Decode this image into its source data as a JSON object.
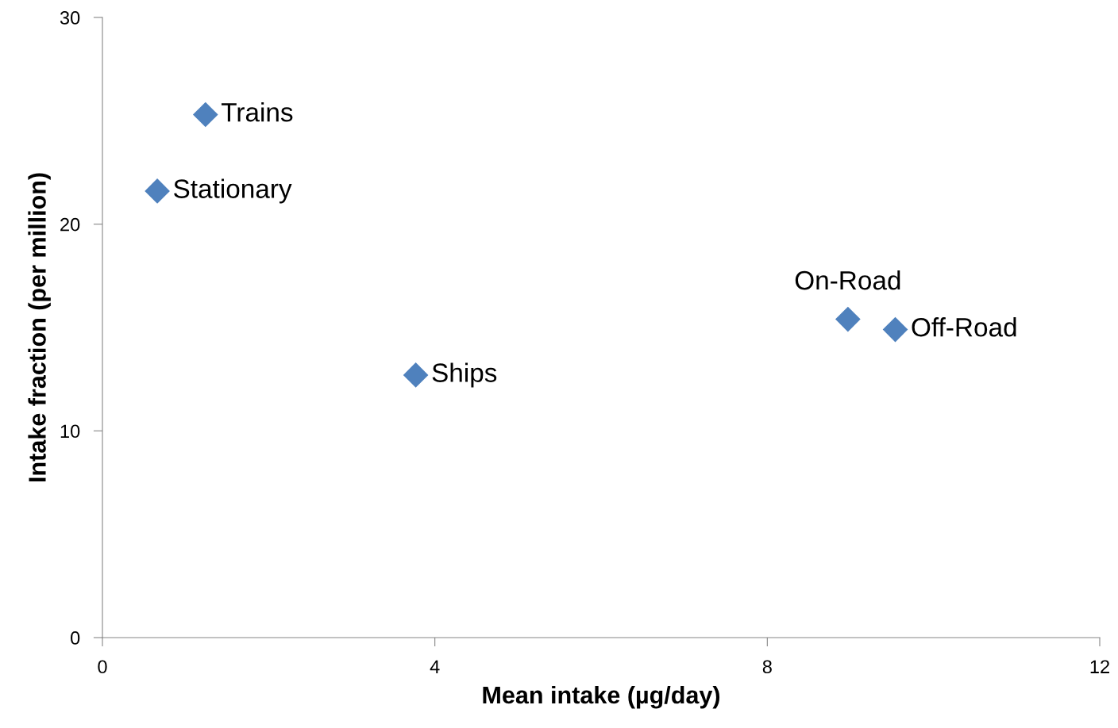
{
  "chart_data": {
    "type": "scatter",
    "xlabel": "Mean intake (µg/day)",
    "ylabel": "Intake fraction (per million)",
    "xlim": [
      0,
      12
    ],
    "xticks": [
      0,
      4,
      8,
      12
    ],
    "ylim": [
      0,
      30
    ],
    "yticks": [
      0,
      10,
      20,
      30
    ],
    "grid": false,
    "marker": "diamond",
    "series": [
      {
        "color": "#4f81bd",
        "x": [
          1.24,
          0.66,
          3.77,
          8.97,
          9.54
        ],
        "values": [
          25.3,
          21.6,
          12.7,
          15.4,
          14.9
        ]
      }
    ],
    "annotations": [
      {
        "text": "Trains",
        "x": 1.24,
        "y": 25.3
      },
      {
        "text": "Stationary",
        "x": 0.66,
        "y": 21.6
      },
      {
        "text": "Ships",
        "x": 3.77,
        "y": 12.7
      },
      {
        "text": "On-Road",
        "x": 8.97,
        "y": 15.4
      },
      {
        "text": "Off-Road",
        "x": 9.54,
        "y": 14.9
      }
    ]
  }
}
